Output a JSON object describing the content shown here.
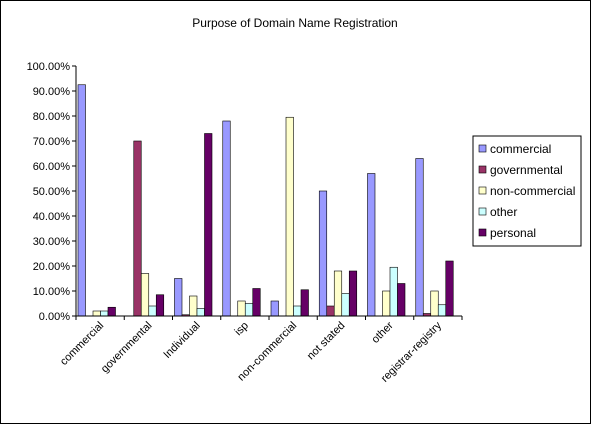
{
  "chart_data": {
    "type": "bar",
    "title": "Purpose of Domain Name Registration",
    "xlabel": "",
    "ylabel": "",
    "ylim": [
      0,
      1.0
    ],
    "ytick_step": 0.1,
    "ytick_labels": [
      "0.00%",
      "10.00%",
      "20.00%",
      "30.00%",
      "40.00%",
      "50.00%",
      "60.00%",
      "70.00%",
      "80.00%",
      "90.00%",
      "100.00%"
    ],
    "grid": false,
    "legend_position": "right",
    "categories": [
      "commercial",
      "governmental",
      "Individual",
      "isp",
      "non-commercial",
      "not stated",
      "other",
      "registrar-registry"
    ],
    "series": [
      {
        "name": "commercial",
        "color": "#9999ff",
        "values": [
          0.925,
          0.0,
          0.15,
          0.78,
          0.06,
          0.5,
          0.57,
          0.63
        ]
      },
      {
        "name": "governmental",
        "color": "#993366",
        "values": [
          0.0,
          0.7,
          0.005,
          0.0,
          0.0,
          0.04,
          0.0,
          0.01
        ]
      },
      {
        "name": "non-commercial",
        "color": "#ffffcc",
        "values": [
          0.02,
          0.17,
          0.08,
          0.06,
          0.795,
          0.18,
          0.1,
          0.1
        ]
      },
      {
        "name": "other",
        "color": "#ccffff",
        "values": [
          0.02,
          0.04,
          0.03,
          0.05,
          0.04,
          0.09,
          0.195,
          0.045
        ]
      },
      {
        "name": "personal",
        "color": "#660066",
        "values": [
          0.035,
          0.085,
          0.73,
          0.11,
          0.105,
          0.18,
          0.13,
          0.22
        ]
      }
    ]
  }
}
